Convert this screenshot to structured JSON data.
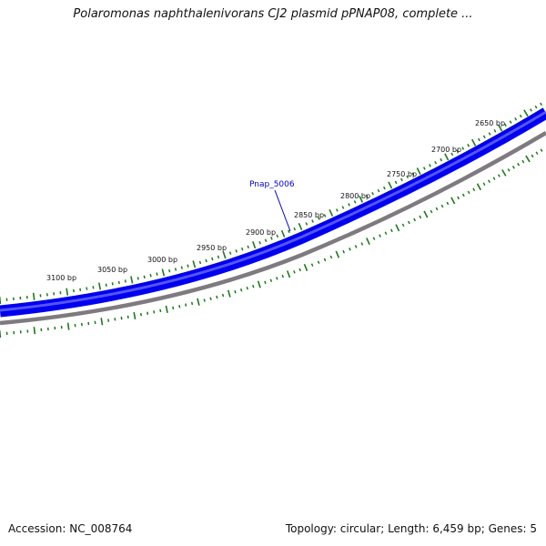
{
  "header": {
    "title": "Polaromonas naphthalenivorans CJ2 plasmid pPNAP08, complete ..."
  },
  "footer": {
    "accession": "Accession: NC_008764",
    "summary": "Topology: circular; Length: 6,459 bp; Genes: 5"
  },
  "map": {
    "tick_labels": [
      "3100 bp",
      "3050 bp",
      "3000 bp",
      "2950 bp",
      "2900 bp",
      "2850 bp",
      "2800 bp",
      "2750 bp",
      "2700 bp",
      "2650 bp"
    ],
    "gene_labels": [
      "Pnap_5006"
    ],
    "colors": {
      "gene": "#0000ee",
      "gene_highlight": "#6666ff",
      "backbone": "#7f7a80",
      "ticks": "#1b7a1b",
      "gene_label": "#0000cc",
      "leader": "#0000cc"
    }
  }
}
